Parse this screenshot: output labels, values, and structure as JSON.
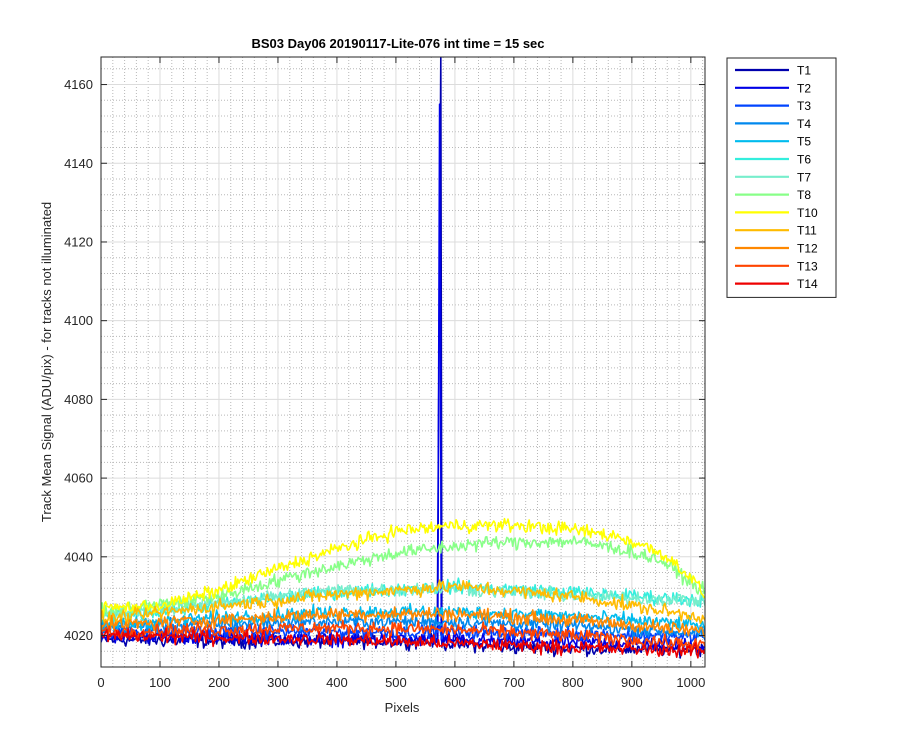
{
  "chart_data": {
    "type": "line",
    "title": "BS03 Day06 20190117-Lite-076 int time = 15 sec",
    "xlabel": "Pixels",
    "ylabel": "Track Mean Signal (ADU/pix) - for tracks not illuminated",
    "xlim": [
      0,
      1024
    ],
    "ylim": [
      4012,
      4167
    ],
    "xticks": [
      0,
      100,
      200,
      300,
      400,
      500,
      600,
      700,
      800,
      900,
      1000
    ],
    "yticks": [
      4020,
      4040,
      4060,
      4080,
      4100,
      4120,
      4140,
      4160
    ],
    "grid": true,
    "minor_grid": true,
    "legend_position": "outside-right",
    "series": [
      {
        "name": "T1",
        "color": "#0000ad",
        "points": [
          [
            0,
            4019
          ],
          [
            200,
            4018.5
          ],
          [
            400,
            4018.5
          ],
          [
            570,
            4018.5
          ],
          [
            576,
            4167
          ],
          [
            578,
            4018
          ],
          [
            700,
            4017
          ],
          [
            900,
            4016.5
          ],
          [
            1024,
            4016.5
          ]
        ]
      },
      {
        "name": "T2",
        "color": "#0000e6",
        "points": [
          [
            0,
            4020
          ],
          [
            200,
            4019.5
          ],
          [
            400,
            4019
          ],
          [
            571,
            4019
          ],
          [
            574,
            4155
          ],
          [
            577,
            4019
          ],
          [
            700,
            4018.5
          ],
          [
            900,
            4018
          ],
          [
            1024,
            4017.5
          ]
        ]
      },
      {
        "name": "T3",
        "color": "#0044ff",
        "points": [
          [
            0,
            4021
          ],
          [
            200,
            4021
          ],
          [
            400,
            4021
          ],
          [
            600,
            4021
          ],
          [
            800,
            4020.5
          ],
          [
            1024,
            4019.5
          ]
        ]
      },
      {
        "name": "T4",
        "color": "#0088ee",
        "points": [
          [
            0,
            4022
          ],
          [
            200,
            4023
          ],
          [
            400,
            4023.5
          ],
          [
            600,
            4023.5
          ],
          [
            800,
            4022.5
          ],
          [
            1024,
            4020.5
          ]
        ]
      },
      {
        "name": "T5",
        "color": "#00bbee",
        "points": [
          [
            0,
            4022.5
          ],
          [
            200,
            4024.5
          ],
          [
            400,
            4026
          ],
          [
            600,
            4026
          ],
          [
            800,
            4025
          ],
          [
            1024,
            4022.5
          ]
        ]
      },
      {
        "name": "T6",
        "color": "#33eedd",
        "points": [
          [
            0,
            4024.5
          ],
          [
            200,
            4028
          ],
          [
            400,
            4031
          ],
          [
            600,
            4032.5
          ],
          [
            800,
            4031
          ],
          [
            900,
            4030
          ],
          [
            1024,
            4029
          ]
        ]
      },
      {
        "name": "T7",
        "color": "#77eecc",
        "points": [
          [
            0,
            4025
          ],
          [
            200,
            4028.5
          ],
          [
            400,
            4031.5
          ],
          [
            600,
            4032
          ],
          [
            800,
            4030
          ],
          [
            1024,
            4029
          ]
        ]
      },
      {
        "name": "T8",
        "color": "#88ff88",
        "points": [
          [
            0,
            4026
          ],
          [
            200,
            4030
          ],
          [
            350,
            4036
          ],
          [
            500,
            4041
          ],
          [
            650,
            4043.5
          ],
          [
            800,
            4044
          ],
          [
            880,
            4042
          ],
          [
            950,
            4039
          ],
          [
            1024,
            4031
          ]
        ]
      },
      {
        "name": "T10",
        "color": "#ffff00",
        "points": [
          [
            0,
            4027
          ],
          [
            100,
            4027.5
          ],
          [
            200,
            4031.5
          ],
          [
            300,
            4037
          ],
          [
            400,
            4042
          ],
          [
            500,
            4046.5
          ],
          [
            600,
            4048
          ],
          [
            700,
            4048
          ],
          [
            800,
            4047
          ],
          [
            880,
            4045
          ],
          [
            950,
            4041
          ],
          [
            1000,
            4035
          ],
          [
            1024,
            4030
          ]
        ]
      },
      {
        "name": "T11",
        "color": "#ffbb00",
        "points": [
          [
            0,
            4024
          ],
          [
            200,
            4027.5
          ],
          [
            400,
            4030.5
          ],
          [
            600,
            4032.5
          ],
          [
            800,
            4030
          ],
          [
            1024,
            4024.5
          ]
        ]
      },
      {
        "name": "T12",
        "color": "#ff8800",
        "points": [
          [
            0,
            4022.5
          ],
          [
            200,
            4024
          ],
          [
            400,
            4025.5
          ],
          [
            600,
            4025.5
          ],
          [
            800,
            4024
          ],
          [
            1024,
            4021
          ]
        ]
      },
      {
        "name": "T13",
        "color": "#ff4400",
        "points": [
          [
            0,
            4021
          ],
          [
            200,
            4021.5
          ],
          [
            400,
            4022
          ],
          [
            600,
            4021.5
          ],
          [
            800,
            4020
          ],
          [
            1024,
            4017.5
          ]
        ]
      },
      {
        "name": "T14",
        "color": "#ee0000",
        "points": [
          [
            0,
            4020
          ],
          [
            200,
            4019.5
          ],
          [
            400,
            4019
          ],
          [
            600,
            4018
          ],
          [
            800,
            4017
          ],
          [
            1024,
            4016
          ]
        ]
      }
    ]
  }
}
